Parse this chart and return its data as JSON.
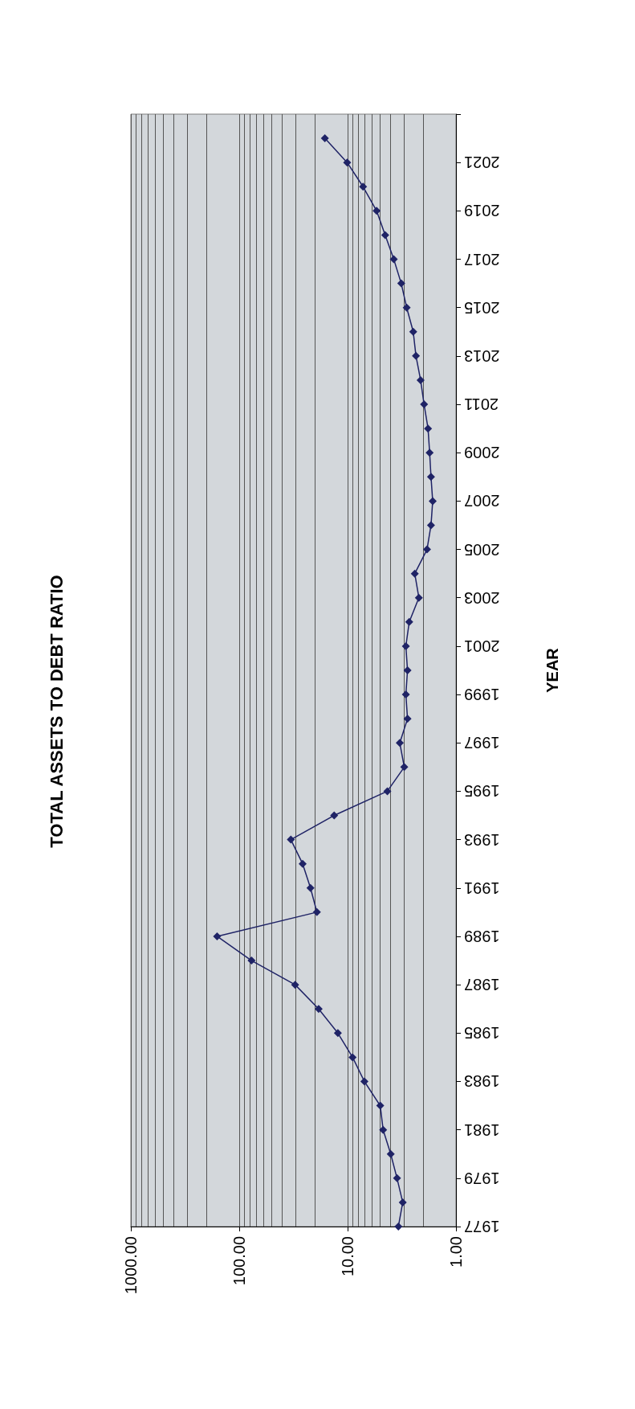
{
  "chart_data": {
    "type": "line",
    "title": "TOTAL ASSETS TO DEBT RATIO",
    "ylabel": "YEAR",
    "series": [
      {
        "color": "#1f2366",
        "x": [
          3.4,
          3.1,
          3.5,
          4.0,
          4.7,
          5.0,
          7.0,
          9.0,
          12.3,
          18.5,
          30.5,
          77,
          160,
          19.2,
          22,
          26,
          33.4,
          13.3,
          4.3,
          3.0,
          3.3,
          2.8,
          2.9,
          2.8,
          2.9,
          2.7,
          2.2,
          2.4,
          1.85,
          1.7,
          1.64,
          1.7,
          1.75,
          1.81,
          1.97,
          2.12,
          2.34,
          2.48,
          2.85,
          3.2,
          3.75,
          4.5,
          5.4,
          7.2,
          10.1,
          16.2
        ],
        "values": [
          1977,
          1978,
          1979,
          1980,
          1981,
          1982,
          1983,
          1984,
          1985,
          1986,
          1987,
          1988,
          1989,
          1990,
          1991,
          1992,
          1993,
          1994,
          1995,
          1996,
          1997,
          1998,
          1999,
          2000,
          2001,
          2002,
          2003,
          2004,
          2005,
          2006,
          2007,
          2008,
          2009,
          2010,
          2011,
          2012,
          2013,
          2014,
          2015,
          2016,
          2017,
          2018,
          2019,
          2020,
          2021,
          2022
        ]
      }
    ],
    "ylim": [
      1977,
      2023
    ],
    "yticks": [
      1977,
      1979,
      1981,
      1983,
      1985,
      1987,
      1989,
      1991,
      1993,
      1995,
      1997,
      1999,
      2001,
      2003,
      2005,
      2007,
      2009,
      2011,
      2013,
      2015,
      2017,
      2019,
      2021,
      {
        "value": 2023,
        "label": null
      }
    ],
    "xlim": [
      1000,
      1
    ],
    "xticks": [
      {
        "value": 1000,
        "label": "1000.00"
      },
      {
        "value": 100,
        "label": "100.00"
      },
      {
        "value": 10,
        "label": "10.00"
      },
      {
        "value": 1,
        "label": "1.00"
      }
    ],
    "log": "x",
    "grid": "x",
    "marker": "diamond",
    "line_style": "solid"
  }
}
